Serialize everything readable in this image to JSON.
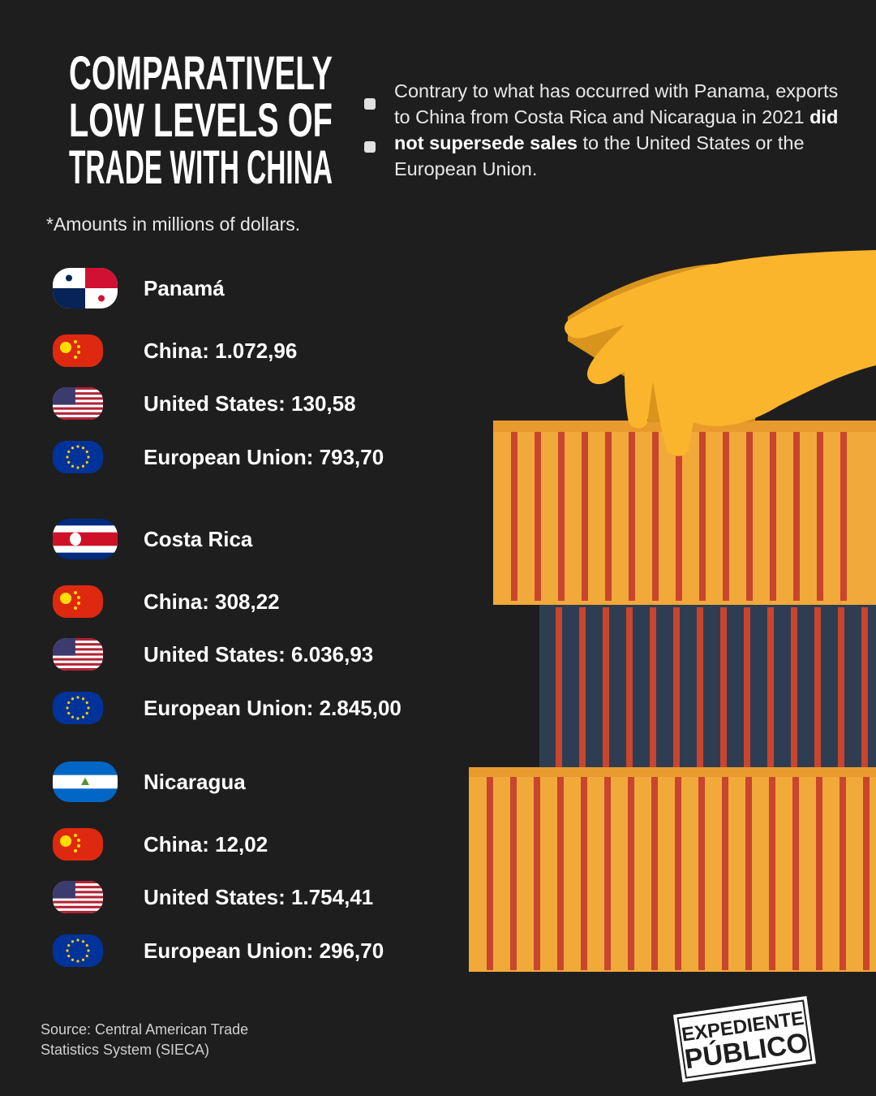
{
  "header": {
    "title": [
      "COMPARATIVELY",
      "LOW LEVELS OF",
      "TRADE WITH CHINA"
    ],
    "intro": [
      {
        "text": "Contrary to what has occurred with Panama, exports to China from Costa Rica and Nicaragua in 2021",
        "bold": false
      },
      {
        "text": "did not supersede sales",
        "bold": true
      },
      {
        "text": "to the United States or the European Union.",
        "bold": false
      }
    ],
    "note": "*Amounts in millions of dollars."
  },
  "groups": [
    {
      "country": "Panamá",
      "items": [
        "China: 1.072,96",
        "United States: 130,58",
        "European Union: 793,70"
      ]
    },
    {
      "country": "Costa Rica",
      "items": [
        "China: 308,22",
        "United States: 6.036,93",
        "European Union: 2.845,00"
      ]
    },
    {
      "country": "Nicaragua",
      "items": [
        "China: 12,02",
        "United States: 1.754,41",
        "European Union: 296,70"
      ]
    }
  ],
  "footer": {
    "source": [
      "Source: Central American Trade",
      "Statistics System (SIECA)"
    ],
    "logo": [
      "EXPEDIENTE",
      "PÚBLICO"
    ]
  }
}
